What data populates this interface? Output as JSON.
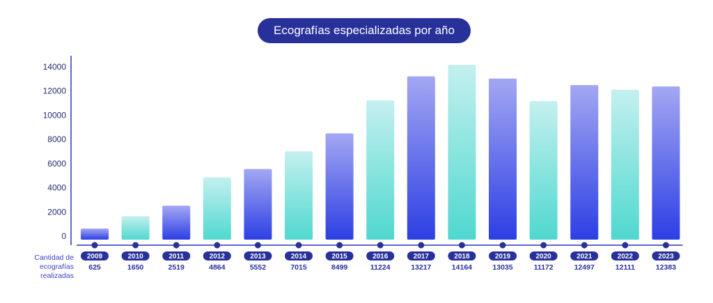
{
  "chart_data": {
    "type": "bar",
    "title": "Ecografías especializadas por año",
    "categories": [
      "2009",
      "2010",
      "2011",
      "2012",
      "2013",
      "2014",
      "2015",
      "2016",
      "2017",
      "2018",
      "2019",
      "2020",
      "2021",
      "2022",
      "2023"
    ],
    "values": [
      625,
      1650,
      2519,
      4864,
      5552,
      7015,
      8499,
      11224,
      13217,
      14164,
      13035,
      11172,
      12497,
      12111,
      12383
    ],
    "value_labels": [
      "625",
      "1650",
      "2519",
      "4864",
      "5552",
      "7015",
      "8499",
      "11224",
      "13217",
      "14164",
      "13035",
      "11172",
      "12497",
      "12111",
      "12383"
    ],
    "yticks": [
      "0",
      "2000",
      "4000",
      "6000",
      "8000",
      "10000",
      "12000",
      "14000"
    ],
    "ylim": [
      0,
      14500
    ],
    "row_label": "Cantidad de ecografías realizadas",
    "grid": false,
    "colors": {
      "blue_top": "#a3a7f2",
      "blue_bottom": "#2c3fe4",
      "teal_top": "#c4f0ef",
      "teal_bottom": "#4fd8cf",
      "axis": "#2b33b8",
      "pill": "#28309a"
    },
    "bar_styles": [
      "blue",
      "teal",
      "blue",
      "teal",
      "blue",
      "teal",
      "blue",
      "teal",
      "blue",
      "teal",
      "blue",
      "teal",
      "blue",
      "teal",
      "blue"
    ]
  }
}
